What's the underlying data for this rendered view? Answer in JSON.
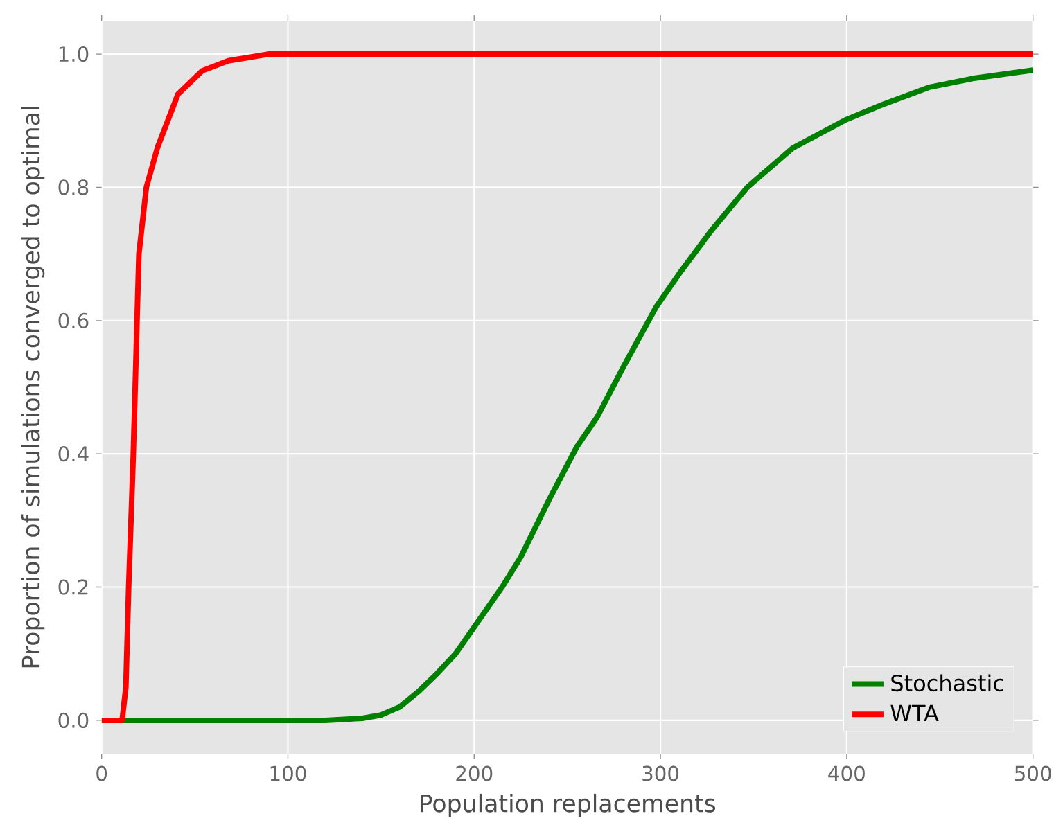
{
  "chart_data": {
    "type": "line",
    "xlabel": "Population replacements",
    "ylabel": "Proportion of simulations converged to optimal",
    "xlim": [
      0,
      500
    ],
    "ylim": [
      -0.05,
      1.05
    ],
    "xticks": [
      0,
      100,
      200,
      300,
      400,
      500
    ],
    "yticks": [
      {
        "value": 0,
        "label": "0.0"
      },
      {
        "value": 0.2,
        "label": "0.2"
      },
      {
        "value": 0.4,
        "label": "0.4"
      },
      {
        "value": 0.6,
        "label": "0.6"
      },
      {
        "value": 0.8,
        "label": "0.8"
      },
      {
        "value": 1,
        "label": "1.0"
      }
    ],
    "grid": true,
    "legend": "bottom right",
    "series": [
      {
        "name": "Stochastic",
        "color": "#008000",
        "x": [
          0,
          120,
          140,
          150,
          160,
          170,
          180,
          190,
          200,
          215,
          225,
          240,
          255,
          266,
          280,
          297.6,
          310,
          327,
          346.6,
          371,
          400,
          420,
          444,
          469,
          500
        ],
        "values": [
          0,
          0,
          0.003,
          0.008,
          0.02,
          0.043,
          0.07,
          0.1,
          0.14,
          0.2,
          0.245,
          0.33,
          0.41,
          0.455,
          0.53,
          0.62,
          0.67,
          0.734,
          0.8,
          0.859,
          0.902,
          0.925,
          0.95,
          0.964,
          0.976
        ]
      },
      {
        "name": "WTA",
        "color": "#ff0000",
        "x": [
          0,
          11,
          13,
          14.5,
          17,
          18,
          20,
          24,
          30,
          41,
          54,
          68,
          90,
          500
        ],
        "values": [
          0,
          0,
          0.05,
          0.2,
          0.4,
          0.5,
          0.7,
          0.8,
          0.86,
          0.94,
          0.975,
          0.99,
          1.0,
          1.0
        ]
      }
    ]
  }
}
